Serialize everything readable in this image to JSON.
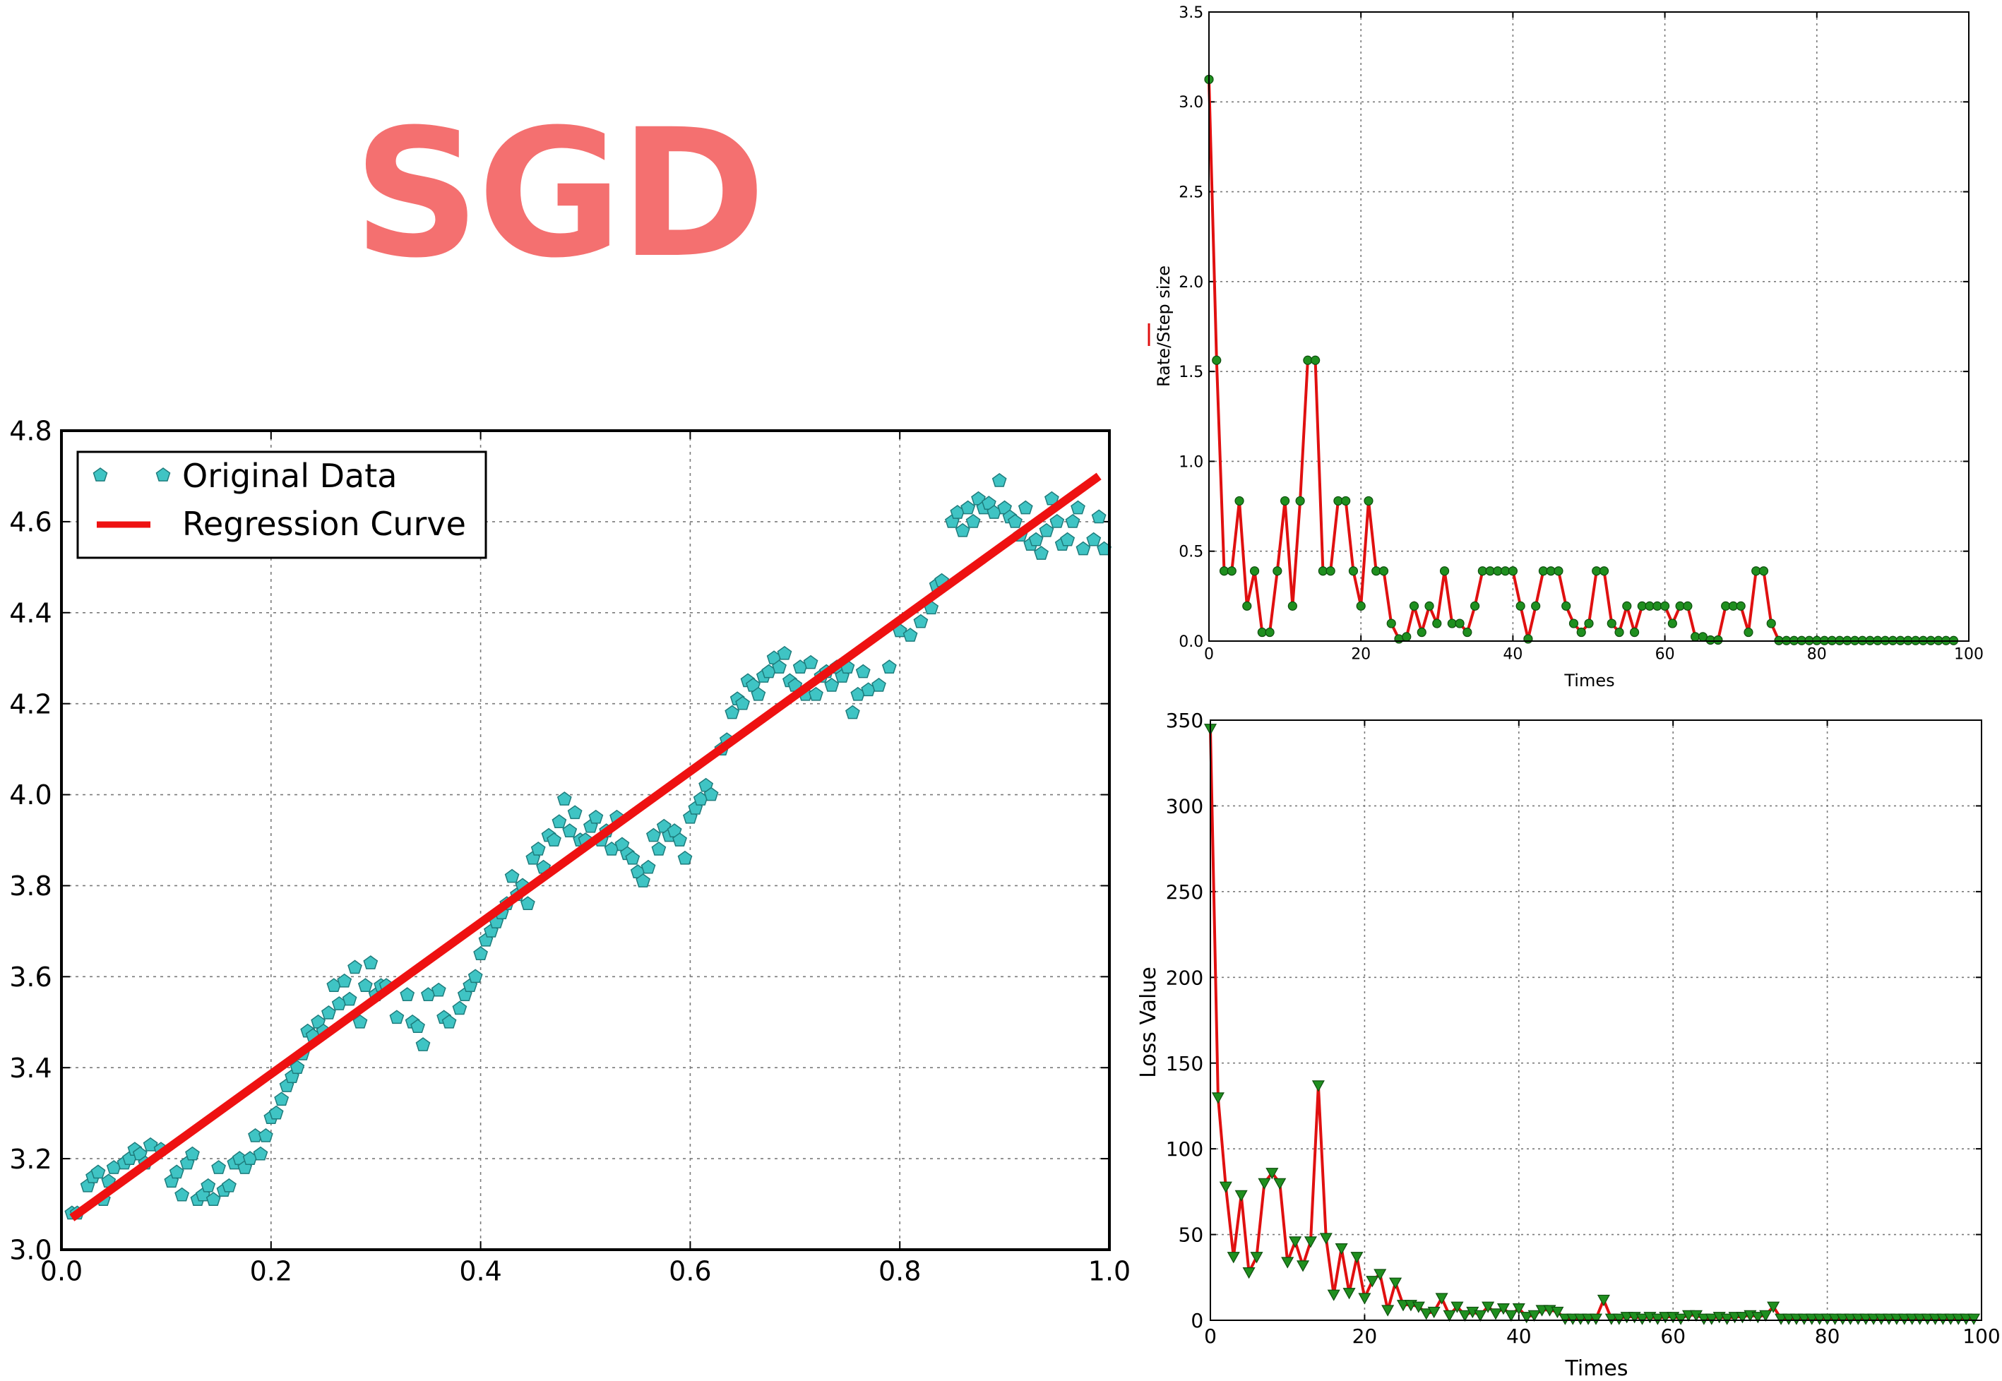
{
  "title": "SGD",
  "colors": {
    "title": "#f47070",
    "regression": "#ee1111",
    "scatter_fill": "#3fc4c4",
    "scatter_edge": "#1e7c7c",
    "marker_green": "#1f8f1f",
    "step_line": "#e01010",
    "loss_line": "#e01010",
    "grid": "#7a7a7a"
  },
  "chart_data": [
    {
      "id": "regression",
      "type": "scatter",
      "xlim": [
        0.0,
        1.0
      ],
      "ylim": [
        3.0,
        4.8
      ],
      "xticks": [
        0.0,
        0.2,
        0.4,
        0.6,
        0.8,
        1.0
      ],
      "yticks": [
        3.0,
        3.2,
        3.4,
        3.6,
        3.8,
        4.0,
        4.2,
        4.4,
        4.6,
        4.8
      ],
      "xtick_labels": [
        "0.0",
        "0.2",
        "0.4",
        "0.6",
        "0.8",
        "1.0"
      ],
      "ytick_labels": [
        "3.0",
        "3.2",
        "3.4",
        "3.6",
        "3.8",
        "4.0",
        "4.2",
        "4.4",
        "4.6",
        "4.8"
      ],
      "grid": true,
      "legend_position": "top-left",
      "series": [
        {
          "name": "Original Data",
          "marker": "pentagon",
          "points": [
            [
              0.01,
              3.08
            ],
            [
              0.015,
              3.08
            ],
            [
              0.025,
              3.14
            ],
            [
              0.03,
              3.16
            ],
            [
              0.035,
              3.17
            ],
            [
              0.04,
              3.11
            ],
            [
              0.045,
              3.15
            ],
            [
              0.05,
              3.18
            ],
            [
              0.06,
              3.19
            ],
            [
              0.065,
              3.2
            ],
            [
              0.07,
              3.22
            ],
            [
              0.075,
              3.21
            ],
            [
              0.08,
              3.19
            ],
            [
              0.085,
              3.23
            ],
            [
              0.095,
              3.22
            ],
            [
              0.105,
              3.15
            ],
            [
              0.11,
              3.17
            ],
            [
              0.115,
              3.12
            ],
            [
              0.12,
              3.19
            ],
            [
              0.125,
              3.21
            ],
            [
              0.13,
              3.11
            ],
            [
              0.135,
              3.12
            ],
            [
              0.14,
              3.14
            ],
            [
              0.145,
              3.11
            ],
            [
              0.15,
              3.18
            ],
            [
              0.155,
              3.13
            ],
            [
              0.16,
              3.14
            ],
            [
              0.165,
              3.19
            ],
            [
              0.17,
              3.2
            ],
            [
              0.175,
              3.18
            ],
            [
              0.18,
              3.2
            ],
            [
              0.185,
              3.25
            ],
            [
              0.19,
              3.21
            ],
            [
              0.195,
              3.25
            ],
            [
              0.2,
              3.29
            ],
            [
              0.205,
              3.3
            ],
            [
              0.21,
              3.33
            ],
            [
              0.215,
              3.36
            ],
            [
              0.22,
              3.38
            ],
            [
              0.225,
              3.4
            ],
            [
              0.23,
              3.43
            ],
            [
              0.235,
              3.48
            ],
            [
              0.24,
              3.47
            ],
            [
              0.245,
              3.5
            ],
            [
              0.25,
              3.48
            ],
            [
              0.255,
              3.52
            ],
            [
              0.26,
              3.58
            ],
            [
              0.265,
              3.54
            ],
            [
              0.27,
              3.59
            ],
            [
              0.275,
              3.55
            ],
            [
              0.28,
              3.62
            ],
            [
              0.285,
              3.5
            ],
            [
              0.29,
              3.58
            ],
            [
              0.295,
              3.63
            ],
            [
              0.3,
              3.56
            ],
            [
              0.305,
              3.58
            ],
            [
              0.31,
              3.58
            ],
            [
              0.32,
              3.51
            ],
            [
              0.33,
              3.56
            ],
            [
              0.335,
              3.5
            ],
            [
              0.34,
              3.49
            ],
            [
              0.345,
              3.45
            ],
            [
              0.35,
              3.56
            ],
            [
              0.36,
              3.57
            ],
            [
              0.365,
              3.51
            ],
            [
              0.37,
              3.5
            ],
            [
              0.38,
              3.53
            ],
            [
              0.385,
              3.56
            ],
            [
              0.39,
              3.58
            ],
            [
              0.395,
              3.6
            ],
            [
              0.4,
              3.65
            ],
            [
              0.405,
              3.68
            ],
            [
              0.41,
              3.7
            ],
            [
              0.415,
              3.72
            ],
            [
              0.42,
              3.74
            ],
            [
              0.425,
              3.76
            ],
            [
              0.43,
              3.82
            ],
            [
              0.435,
              3.78
            ],
            [
              0.44,
              3.8
            ],
            [
              0.445,
              3.76
            ],
            [
              0.45,
              3.86
            ],
            [
              0.455,
              3.88
            ],
            [
              0.46,
              3.84
            ],
            [
              0.465,
              3.91
            ],
            [
              0.47,
              3.9
            ],
            [
              0.475,
              3.94
            ],
            [
              0.48,
              3.99
            ],
            [
              0.485,
              3.92
            ],
            [
              0.49,
              3.96
            ],
            [
              0.495,
              3.9
            ],
            [
              0.5,
              3.9
            ],
            [
              0.505,
              3.93
            ],
            [
              0.51,
              3.95
            ],
            [
              0.515,
              3.9
            ],
            [
              0.52,
              3.92
            ],
            [
              0.525,
              3.88
            ],
            [
              0.53,
              3.95
            ],
            [
              0.535,
              3.89
            ],
            [
              0.54,
              3.87
            ],
            [
              0.545,
              3.86
            ],
            [
              0.55,
              3.83
            ],
            [
              0.555,
              3.81
            ],
            [
              0.56,
              3.84
            ],
            [
              0.565,
              3.91
            ],
            [
              0.57,
              3.88
            ],
            [
              0.575,
              3.93
            ],
            [
              0.58,
              3.91
            ],
            [
              0.585,
              3.92
            ],
            [
              0.59,
              3.9
            ],
            [
              0.595,
              3.86
            ],
            [
              0.6,
              3.95
            ],
            [
              0.605,
              3.97
            ],
            [
              0.61,
              3.99
            ],
            [
              0.615,
              4.02
            ],
            [
              0.62,
              4.0
            ],
            [
              0.63,
              4.1
            ],
            [
              0.635,
              4.12
            ],
            [
              0.64,
              4.18
            ],
            [
              0.645,
              4.21
            ],
            [
              0.65,
              4.2
            ],
            [
              0.655,
              4.25
            ],
            [
              0.66,
              4.24
            ],
            [
              0.665,
              4.22
            ],
            [
              0.67,
              4.26
            ],
            [
              0.675,
              4.27
            ],
            [
              0.68,
              4.3
            ],
            [
              0.685,
              4.28
            ],
            [
              0.69,
              4.31
            ],
            [
              0.695,
              4.25
            ],
            [
              0.7,
              4.24
            ],
            [
              0.705,
              4.28
            ],
            [
              0.71,
              4.22
            ],
            [
              0.715,
              4.29
            ],
            [
              0.72,
              4.22
            ],
            [
              0.725,
              4.26
            ],
            [
              0.73,
              4.27
            ],
            [
              0.735,
              4.24
            ],
            [
              0.74,
              4.28
            ],
            [
              0.745,
              4.26
            ],
            [
              0.75,
              4.28
            ],
            [
              0.755,
              4.18
            ],
            [
              0.76,
              4.22
            ],
            [
              0.765,
              4.27
            ],
            [
              0.77,
              4.23
            ],
            [
              0.78,
              4.24
            ],
            [
              0.79,
              4.28
            ],
            [
              0.8,
              4.36
            ],
            [
              0.81,
              4.35
            ],
            [
              0.82,
              4.38
            ],
            [
              0.83,
              4.41
            ],
            [
              0.835,
              4.46
            ],
            [
              0.84,
              4.47
            ],
            [
              0.85,
              4.6
            ],
            [
              0.855,
              4.62
            ],
            [
              0.86,
              4.58
            ],
            [
              0.865,
              4.63
            ],
            [
              0.87,
              4.6
            ],
            [
              0.875,
              4.65
            ],
            [
              0.88,
              4.63
            ],
            [
              0.885,
              4.64
            ],
            [
              0.89,
              4.62
            ],
            [
              0.895,
              4.69
            ],
            [
              0.9,
              4.63
            ],
            [
              0.905,
              4.61
            ],
            [
              0.91,
              4.6
            ],
            [
              0.915,
              4.57
            ],
            [
              0.92,
              4.63
            ],
            [
              0.925,
              4.55
            ],
            [
              0.93,
              4.56
            ],
            [
              0.935,
              4.53
            ],
            [
              0.94,
              4.58
            ],
            [
              0.945,
              4.65
            ],
            [
              0.95,
              4.6
            ],
            [
              0.955,
              4.55
            ],
            [
              0.96,
              4.56
            ],
            [
              0.965,
              4.6
            ],
            [
              0.97,
              4.63
            ],
            [
              0.975,
              4.54
            ],
            [
              0.985,
              4.56
            ],
            [
              0.99,
              4.61
            ],
            [
              0.995,
              4.54
            ]
          ]
        },
        {
          "name": "Regression Curve",
          "line": [
            [
              0.01,
              3.07
            ],
            [
              0.99,
              4.7
            ]
          ]
        }
      ]
    },
    {
      "id": "step",
      "type": "line",
      "xlabel": "Times",
      "ylabel": "Rate/Step size",
      "xlim": [
        0,
        100
      ],
      "ylim": [
        0.0,
        3.5
      ],
      "xticks": [
        0,
        20,
        40,
        60,
        80,
        100
      ],
      "yticks": [
        0.0,
        0.5,
        1.0,
        1.5,
        2.0,
        2.5,
        3.0,
        3.5
      ],
      "xtick_labels": [
        "0",
        "20",
        "40",
        "60",
        "80",
        "100"
      ],
      "ytick_labels": [
        "0.0",
        "0.5",
        "1.0",
        "1.5",
        "2.0",
        "2.5",
        "3.0",
        "3.5"
      ],
      "grid": true,
      "marker": "circle",
      "x_start": 0,
      "values": [
        3.125,
        1.5625,
        0.39,
        0.39,
        0.78,
        0.195,
        0.39,
        0.049,
        0.049,
        0.39,
        0.78,
        0.195,
        0.78,
        1.5625,
        1.5625,
        0.39,
        0.39,
        0.78,
        0.78,
        0.39,
        0.195,
        0.78,
        0.39,
        0.39,
        0.098,
        0.012,
        0.024,
        0.195,
        0.049,
        0.195,
        0.098,
        0.39,
        0.098,
        0.098,
        0.049,
        0.195,
        0.39,
        0.39,
        0.39,
        0.39,
        0.39,
        0.195,
        0.012,
        0.195,
        0.39,
        0.39,
        0.39,
        0.195,
        0.098,
        0.049,
        0.098,
        0.39,
        0.39,
        0.098,
        0.049,
        0.195,
        0.049,
        0.195,
        0.195,
        0.195,
        0.195,
        0.098,
        0.195,
        0.195,
        0.024,
        0.024,
        0.006,
        0.006,
        0.195,
        0.195,
        0.195,
        0.049,
        0.39,
        0.39,
        0.098,
        0.003,
        0.003,
        0.003,
        0.003,
        0.003,
        0.003,
        0.003,
        0.003,
        0.003,
        0.003,
        0.003,
        0.003,
        0.003,
        0.003,
        0.003,
        0.003,
        0.003,
        0.003,
        0.003,
        0.003,
        0.003,
        0.003,
        0.003,
        0.003
      ]
    },
    {
      "id": "loss",
      "type": "line",
      "xlabel": "Times",
      "ylabel": "Loss Value",
      "xlim": [
        0,
        100
      ],
      "ylim": [
        0,
        350
      ],
      "xticks": [
        0,
        20,
        40,
        60,
        80,
        100
      ],
      "yticks": [
        0,
        50,
        100,
        150,
        200,
        250,
        300,
        350
      ],
      "xtick_labels": [
        "0",
        "20",
        "40",
        "60",
        "80",
        "100"
      ],
      "ytick_labels": [
        "0",
        "50",
        "100",
        "150",
        "200",
        "250",
        "300",
        "350"
      ],
      "grid": true,
      "marker": "triangle-down",
      "x_start": 0,
      "values": [
        345,
        130,
        78,
        37,
        73,
        28,
        37,
        80,
        86,
        80,
        34,
        46,
        32,
        46,
        137,
        48,
        15,
        42,
        16,
        37,
        13,
        23,
        27,
        6,
        22,
        9,
        9,
        8,
        4,
        5,
        13,
        3,
        8,
        3,
        5,
        3,
        8,
        4,
        7,
        3,
        7,
        2,
        3,
        6,
        6,
        5,
        1,
        1,
        1,
        1,
        1,
        12,
        1,
        1,
        2,
        2,
        1,
        2,
        1,
        2,
        2,
        1,
        3,
        3,
        1,
        1,
        2,
        1,
        2,
        2,
        3,
        2,
        3,
        8,
        1,
        1,
        1,
        1,
        1,
        1,
        1,
        1,
        1,
        1,
        1,
        1,
        1,
        1,
        1,
        1,
        1,
        1,
        1,
        1,
        1,
        1,
        1,
        1,
        1,
        1
      ]
    }
  ]
}
